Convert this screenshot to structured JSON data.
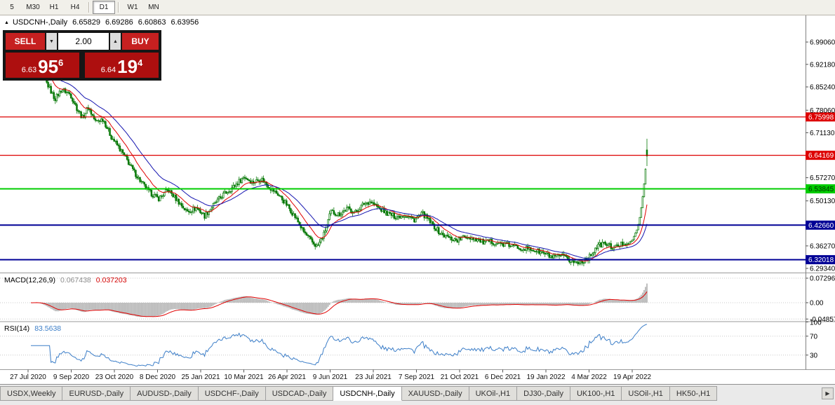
{
  "toolbar": {
    "timeframes": [
      "5",
      "M30",
      "H1",
      "H4",
      "D1",
      "W1",
      "MN"
    ],
    "active": "D1"
  },
  "symbol_header": {
    "collapse_icon": "▲",
    "symbol": "USDCNH-,Daily",
    "open": "6.65829",
    "high": "6.69286",
    "low": "6.60863",
    "close": "6.63956"
  },
  "quote_panel": {
    "sell_label": "SELL",
    "buy_label": "BUY",
    "volume": "2.00",
    "spinner_down_icon": "▼",
    "spinner_up_icon": "▲",
    "bid_prefix": "6.63",
    "bid_big": "95",
    "bid_sup": "6",
    "ask_prefix": "6.64",
    "ask_big": "19",
    "ask_sup": "4"
  },
  "indicators": {
    "macd_label": "MACD(12,26,9)",
    "macd_main": "0.067438",
    "macd_signal": "0.037203",
    "rsi_label": "RSI(14)",
    "rsi_value": "83.5638"
  },
  "tabs": {
    "scroll_right_icon": "▶",
    "active_index": 5,
    "items": [
      "USDX,Weekly",
      "EURUSD-,Daily",
      "AUDUSD-,Daily",
      "USDCHF-,Daily",
      "USDCAD-,Daily",
      "USDCNH-,Daily",
      "XAUUSD-,Daily",
      "UKOil-,H1",
      "DJ30-,Daily",
      "UK100-,H1",
      "USOil-,H1",
      "HK50-,H1"
    ]
  },
  "chart_data": {
    "type": "candlestick",
    "title": "USDCNH-,Daily",
    "timeframe": "Daily",
    "price_range": [
      6.2805,
      7.0726
    ],
    "candle_count": 430,
    "candle_color": "#067806",
    "waypoints": [
      [
        0.0,
        6.915
      ],
      [
        0.007,
        6.925
      ],
      [
        0.016,
        6.895
      ],
      [
        0.027,
        6.86
      ],
      [
        0.039,
        6.815
      ],
      [
        0.05,
        6.845
      ],
      [
        0.064,
        6.83
      ],
      [
        0.075,
        6.785
      ],
      [
        0.084,
        6.757
      ],
      [
        0.093,
        6.79
      ],
      [
        0.105,
        6.745
      ],
      [
        0.117,
        6.754
      ],
      [
        0.13,
        6.7
      ],
      [
        0.143,
        6.665
      ],
      [
        0.155,
        6.63
      ],
      [
        0.166,
        6.595
      ],
      [
        0.178,
        6.562
      ],
      [
        0.191,
        6.53
      ],
      [
        0.207,
        6.508
      ],
      [
        0.223,
        6.535
      ],
      [
        0.239,
        6.5
      ],
      [
        0.253,
        6.468
      ],
      [
        0.269,
        6.48
      ],
      [
        0.282,
        6.455
      ],
      [
        0.297,
        6.49
      ],
      [
        0.312,
        6.52
      ],
      [
        0.329,
        6.545
      ],
      [
        0.346,
        6.576
      ],
      [
        0.36,
        6.558
      ],
      [
        0.374,
        6.57
      ],
      [
        0.388,
        6.542
      ],
      [
        0.402,
        6.52
      ],
      [
        0.415,
        6.49
      ],
      [
        0.428,
        6.455
      ],
      [
        0.442,
        6.408
      ],
      [
        0.456,
        6.375
      ],
      [
        0.465,
        6.36
      ],
      [
        0.476,
        6.4
      ],
      [
        0.487,
        6.468
      ],
      [
        0.5,
        6.46
      ],
      [
        0.514,
        6.478
      ],
      [
        0.527,
        6.466
      ],
      [
        0.54,
        6.492
      ],
      [
        0.551,
        6.5
      ],
      [
        0.565,
        6.478
      ],
      [
        0.579,
        6.462
      ],
      [
        0.593,
        6.452
      ],
      [
        0.608,
        6.458
      ],
      [
        0.622,
        6.443
      ],
      [
        0.636,
        6.462
      ],
      [
        0.65,
        6.432
      ],
      [
        0.665,
        6.4
      ],
      [
        0.679,
        6.387
      ],
      [
        0.692,
        6.38
      ],
      [
        0.707,
        6.392
      ],
      [
        0.722,
        6.385
      ],
      [
        0.736,
        6.372
      ],
      [
        0.747,
        6.376
      ],
      [
        0.761,
        6.369
      ],
      [
        0.776,
        6.365
      ],
      [
        0.79,
        6.359
      ],
      [
        0.804,
        6.354
      ],
      [
        0.818,
        6.349
      ],
      [
        0.832,
        6.34
      ],
      [
        0.847,
        6.326
      ],
      [
        0.861,
        6.332
      ],
      [
        0.875,
        6.317
      ],
      [
        0.889,
        6.309
      ],
      [
        0.906,
        6.327
      ],
      [
        0.918,
        6.36
      ],
      [
        0.931,
        6.371
      ],
      [
        0.946,
        6.356
      ],
      [
        0.961,
        6.371
      ],
      [
        0.975,
        6.376
      ],
      [
        0.984,
        6.412
      ],
      [
        0.99,
        6.468
      ],
      [
        0.9943,
        6.532
      ],
      [
        0.9977,
        6.6
      ],
      [
        0.999,
        6.658
      ],
      [
        1.0,
        6.63956
      ]
    ],
    "last_candle": {
      "open": 6.65829,
      "high": 6.69286,
      "low": 6.60863,
      "close": 6.63956
    },
    "moving_averages": [
      {
        "period": 13,
        "color": "#e00000"
      },
      {
        "period": 30,
        "color": "#1515b0"
      }
    ],
    "price_axis": {
      "ticks": [
        {
          "value": 6.9906,
          "label": "6.99060"
        },
        {
          "value": 6.9218,
          "label": "6.92180"
        },
        {
          "value": 6.8524,
          "label": "6.85240"
        },
        {
          "value": 6.7806,
          "label": "6.78060"
        },
        {
          "value": 6.7113,
          "label": "6.71130"
        },
        {
          "value": 6.5727,
          "label": "6.57270"
        },
        {
          "value": 6.5013,
          "label": "6.50130"
        },
        {
          "value": 6.3627,
          "label": "6.36270"
        },
        {
          "value": 6.2934,
          "label": "6.29340"
        }
      ],
      "levels": [
        {
          "value": 6.75998,
          "label": "6.75998",
          "color": "#dd0000",
          "text": "#ffffff",
          "width": 1.2
        },
        {
          "value": 6.64169,
          "label": "6.64169",
          "color": "#dd0000",
          "text": "#ffffff",
          "width": 1.2
        },
        {
          "value": 6.53845,
          "label": "6.53845",
          "color": "#00cc00",
          "text": "#003300",
          "width": 2
        },
        {
          "value": 6.4266,
          "label": "6.42660",
          "color": "#000096",
          "text": "#ffffff",
          "width": 2
        },
        {
          "value": 6.32018,
          "label": "6.32018",
          "color": "#000096",
          "text": "#ffffff",
          "width": 2
        }
      ]
    },
    "x_axis": {
      "labels": [
        "27 Jul 2020",
        "9 Sep 2020",
        "23 Oct 2020",
        "8 Dec 2020",
        "25 Jan 2021",
        "10 Mar 2021",
        "26 Apr 2021",
        "9 Jun 2021",
        "23 Jul 2021",
        "7 Sep 2021",
        "21 Oct 2021",
        "6 Dec 2021",
        "19 Jan 2022",
        "4 Mar 2022",
        "19 Apr 2022"
      ]
    },
    "macd": {
      "params": [
        12,
        26,
        9
      ],
      "current_main": 0.067438,
      "current_signal": 0.037203,
      "histogram_color": "#b8b8b8",
      "signal_color": "#e00000",
      "axis_ticks": [
        {
          "value": 0.072963,
          "label": "0.072963"
        },
        {
          "value": 0,
          "label": "0.00"
        },
        {
          "value": -0.04857,
          "label": "-0.04857"
        }
      ]
    },
    "rsi": {
      "period": 14,
      "current": 83.5638,
      "color": "#3c7ec8",
      "levels": [
        70,
        30
      ],
      "axis_ticks": [
        {
          "value": 100,
          "label": "100"
        },
        {
          "value": 70,
          "label": "70"
        },
        {
          "value": 30,
          "label": "30"
        }
      ]
    }
  }
}
